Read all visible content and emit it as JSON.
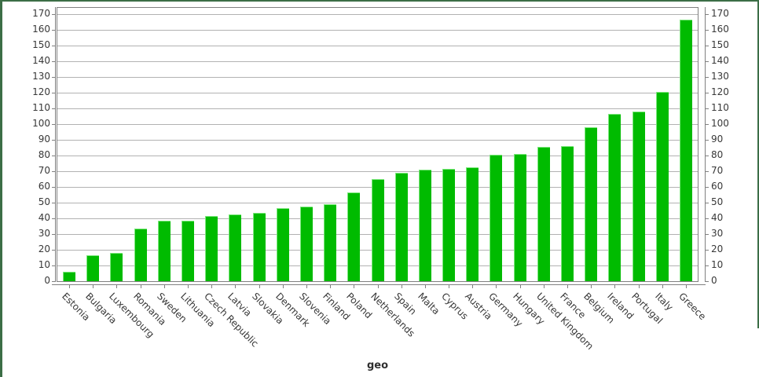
{
  "frame": {
    "border_color": "#3c6e46",
    "background_color": "#ffffff"
  },
  "chart_data": {
    "type": "bar",
    "title": "",
    "xlabel": "geo",
    "ylabel": "",
    "ylim": [
      0,
      174
    ],
    "ytick_step": 10,
    "yticks": [
      0,
      10,
      20,
      30,
      40,
      50,
      60,
      70,
      80,
      90,
      100,
      110,
      120,
      130,
      140,
      150,
      160,
      170
    ],
    "grid": true,
    "legend": false,
    "y_axis_sides": [
      "left",
      "right"
    ],
    "category_label_rotation_deg": 45,
    "bar_color": "#00bb00",
    "bar_highlight_color": "#7ee87e",
    "gridline_color": "#b2b2b2",
    "axis_color": "#808080",
    "tick_label_color": "#383838",
    "categories": [
      "Estonia",
      "Bulgaria",
      "Luxembourg",
      "Romania",
      "Sweden",
      "Lithuania",
      "Czech Republic",
      "Latvia",
      "Slovakia",
      "Denmark",
      "Slovenia",
      "Finland",
      "Poland",
      "Netherlands",
      "Spain",
      "Malta",
      "Cyprus",
      "Austria",
      "Germany",
      "Hungary",
      "United Kingdom",
      "France",
      "Belgium",
      "Ireland",
      "Portugal",
      "Italy",
      "Greece"
    ],
    "values": [
      6.1,
      16.3,
      18.2,
      33.3,
      38.3,
      38.6,
      41.4,
      42.6,
      43.4,
      46.6,
      47.3,
      49.1,
      56.3,
      65.2,
      69.2,
      70.9,
      71.6,
      72.4,
      80.6,
      81.1,
      85.7,
      86.2,
      98.0,
      106.5,
      108.1,
      120.3,
      166.3
    ]
  }
}
